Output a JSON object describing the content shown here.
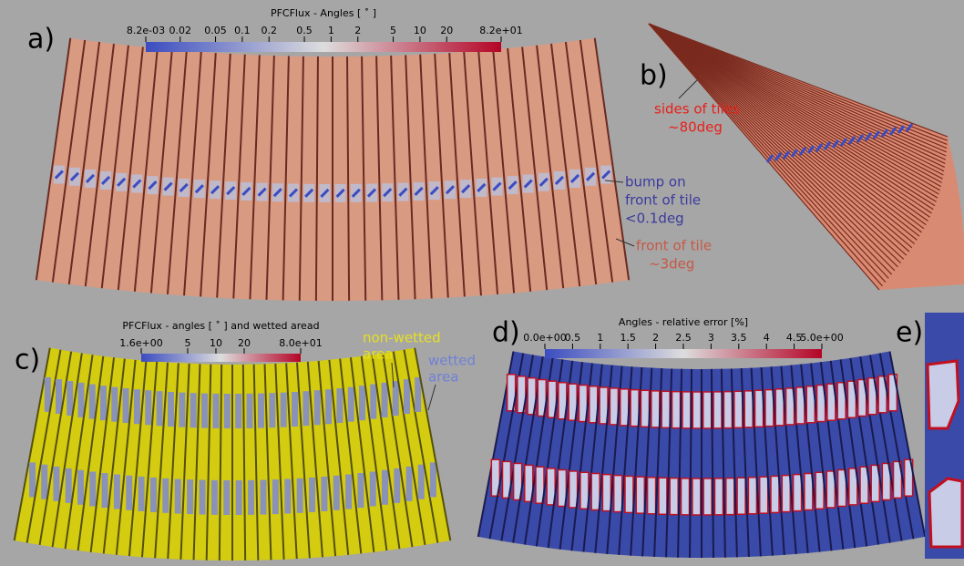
{
  "panels": [
    {
      "label": "a)",
      "colorbar": {
        "title": "PFCFlux - Angles [ ˚ ]",
        "ticks": [
          "8.2e-03",
          "0.02",
          "0.05",
          "0.1",
          "0.2",
          "0.5",
          "1",
          "2",
          "5",
          "10",
          "20",
          "8.2e+01"
        ]
      },
      "annotations": [
        {
          "lines": [
            "bump on",
            "front of tile",
            "<0.1deg"
          ]
        },
        {
          "lines": [
            "front of tile",
            "~3deg"
          ]
        }
      ]
    },
    {
      "label": "b)",
      "annotations": [
        {
          "lines": [
            "sides of tiles",
            "~80deg"
          ]
        }
      ]
    },
    {
      "label": "c)",
      "colorbar": {
        "title": "PFCFlux - angles [ ˚ ] and wetted aread",
        "ticks": [
          "1.6e+00",
          "5",
          "10",
          "20",
          "8.0e+01"
        ]
      },
      "annotations": [
        {
          "lines": [
            "non-wetted",
            "area"
          ]
        },
        {
          "lines": [
            "wetted",
            "area"
          ]
        }
      ]
    },
    {
      "label": "d)",
      "colorbar": {
        "title": "Angles - relative error [%]",
        "ticks": [
          "0.0e+00",
          "0.5",
          "1",
          "1.5",
          "2",
          "2.5",
          "3",
          "3.5",
          "4",
          "4.5",
          "5.0e+00"
        ]
      }
    },
    {
      "label": "e)"
    }
  ]
}
